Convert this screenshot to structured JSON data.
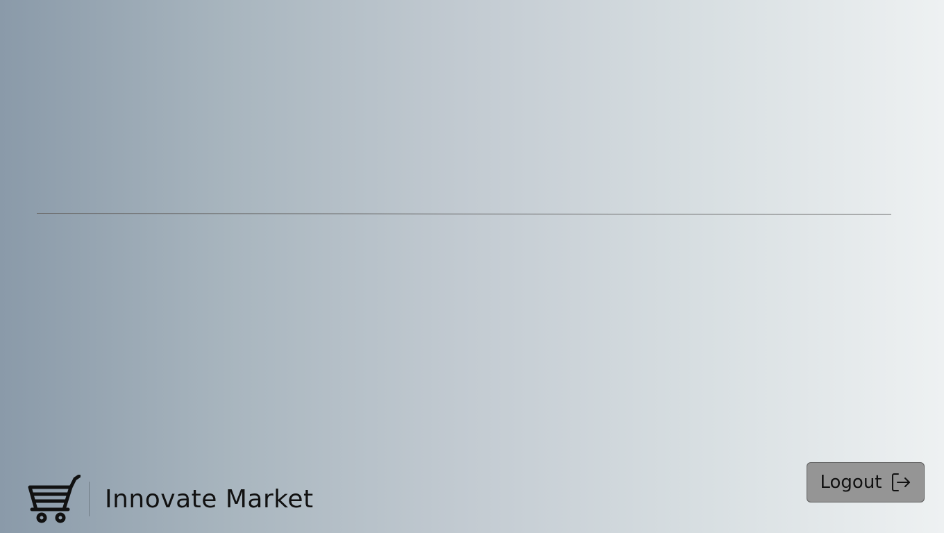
{
  "brand": {
    "name": "Innovate Market",
    "logo_icon": "shopping-cart-icon"
  },
  "actions": {
    "logout_label": "Logout",
    "logout_icon": "logout-icon"
  },
  "colors": {
    "gradient_start": "#8a9aa9",
    "gradient_end": "#eef1f2",
    "button_bg": "#959595"
  }
}
